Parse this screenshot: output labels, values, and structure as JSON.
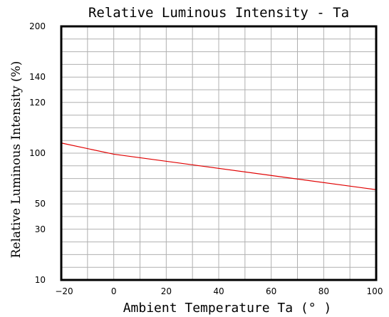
{
  "chart_data": {
    "type": "line",
    "title": "Relative Luminous Intensity - Ta",
    "xlabel": "Ambient Temperature Ta (° )",
    "ylabel": "Relative Luminous Intensity (%)",
    "x_ticks": [
      -20,
      0,
      20,
      40,
      60,
      80,
      100
    ],
    "xlim": [
      -20,
      100
    ],
    "y_ticks": [
      {
        "label": "200",
        "level": 0
      },
      {
        "label": "140",
        "level": 0.2
      },
      {
        "label": "120",
        "level": 0.3
      },
      {
        "label": "100",
        "level": 0.5
      },
      {
        "label": "50",
        "level": 0.7
      },
      {
        "label": "30",
        "level": 0.8
      },
      {
        "label": "10",
        "level": 1
      }
    ],
    "grid": true,
    "series": [
      {
        "color": "#e00000",
        "points": [
          {
            "x": -20,
            "y": 104
          },
          {
            "x": 0,
            "y": 99
          },
          {
            "x": 100,
            "y": 64
          }
        ]
      }
    ]
  }
}
